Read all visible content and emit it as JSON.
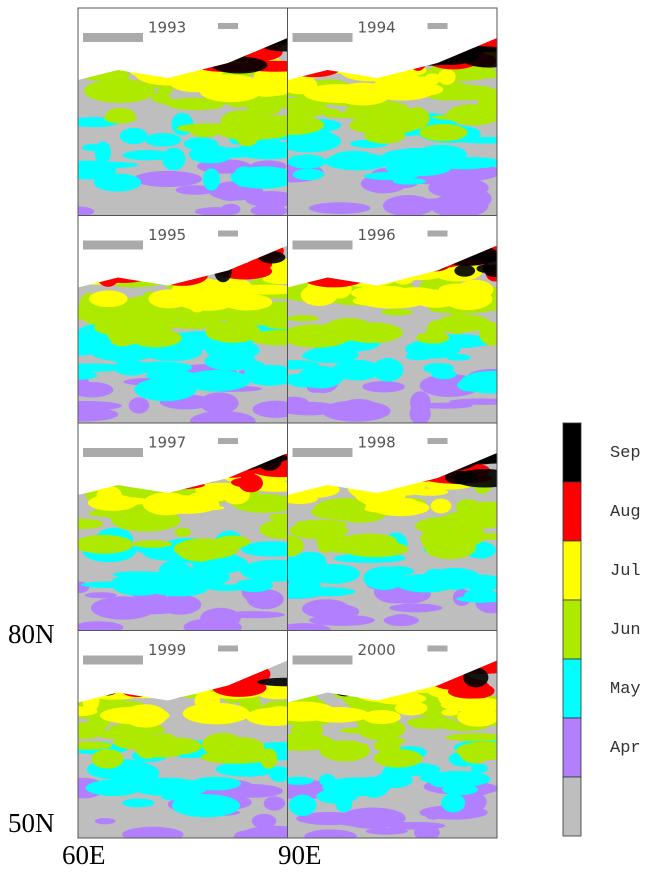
{
  "panels": [
    {
      "year": "1993"
    },
    {
      "year": "1994"
    },
    {
      "year": "1995"
    },
    {
      "year": "1996"
    },
    {
      "year": "1997"
    },
    {
      "year": "1998"
    },
    {
      "year": "1999"
    },
    {
      "year": "2000"
    }
  ],
  "axes": {
    "lat_top": "80N",
    "lat_bottom": "50N",
    "lon_left": "60E",
    "lon_right": "90E"
  },
  "legend": [
    {
      "label": "Sep",
      "color": "#000000"
    },
    {
      "label": "Aug",
      "color": "#ff0000"
    },
    {
      "label": "Jul",
      "color": "#ffff00"
    },
    {
      "label": "Jun",
      "color": "#aeea00"
    },
    {
      "label": "May",
      "color": "#00ffff"
    },
    {
      "label": "Apr",
      "color": "#b27fff"
    },
    {
      "color": "#bebebe"
    }
  ]
}
